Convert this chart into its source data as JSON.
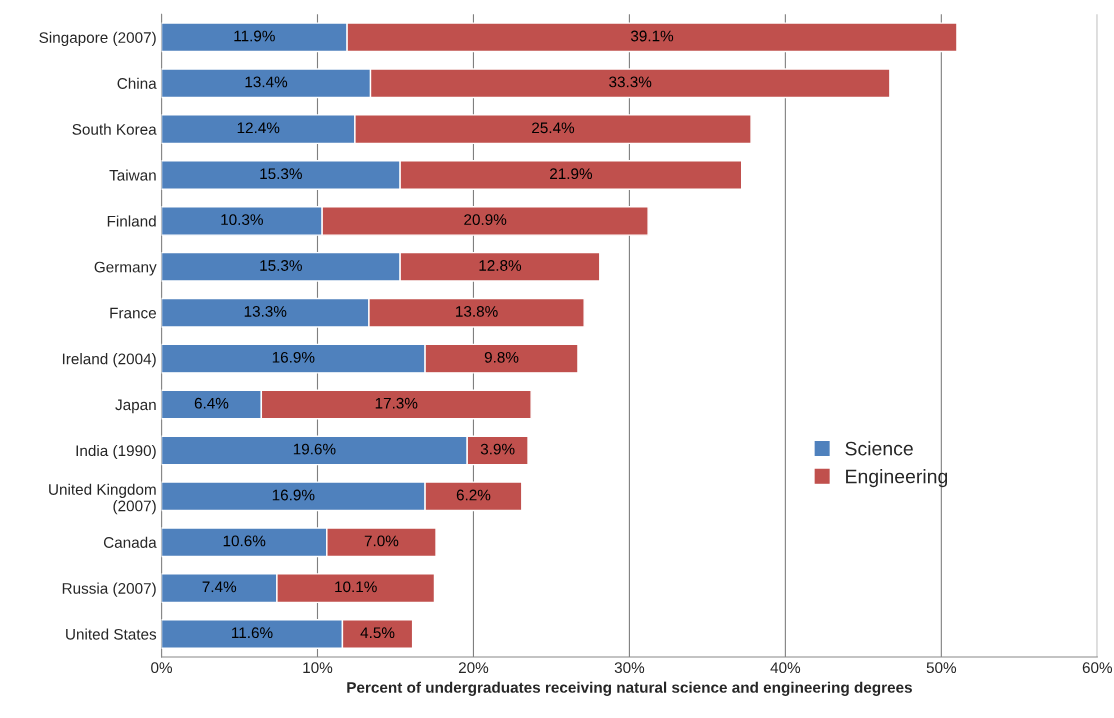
{
  "chart_data": {
    "type": "bar",
    "orientation": "horizontal",
    "stacked": true,
    "xlabel": "Percent of undergraduates receiving natural science and engineering degrees",
    "categories": [
      "Singapore (2007)",
      "China",
      "South Korea",
      "Taiwan",
      "Finland",
      "Germany",
      "France",
      "Ireland (2004)",
      "Japan",
      "India (1990)",
      "United Kingdom\n(2007)",
      "Canada",
      "Russia (2007)",
      "United States"
    ],
    "series": [
      {
        "name": "Science",
        "color": "#4f81bd",
        "values": [
          11.9,
          13.4,
          12.4,
          15.3,
          10.3,
          15.3,
          13.3,
          16.9,
          6.4,
          19.6,
          16.9,
          10.6,
          7.4,
          11.6
        ],
        "value_labels": [
          "11.9%",
          "13.4%",
          "12.4%",
          "15.3%",
          "10.3%",
          "15.3%",
          "13.3%",
          "16.9%",
          "6.4%",
          "19.6%",
          "16.9%",
          "10.6%",
          "7.4%",
          "11.6%"
        ]
      },
      {
        "name": "Engineering",
        "color": "#c0504d",
        "values": [
          39.1,
          33.3,
          25.4,
          21.9,
          20.9,
          12.8,
          13.8,
          9.8,
          17.3,
          3.9,
          6.2,
          7.0,
          10.1,
          4.5
        ],
        "value_labels": [
          "39.1%",
          "33.3%",
          "25.4%",
          "21.9%",
          "20.9%",
          "12.8%",
          "13.8%",
          "9.8%",
          "17.3%",
          "3.9%",
          "6.2%",
          "7.0%",
          "10.1%",
          "4.5%"
        ]
      }
    ],
    "xlim": [
      0,
      60
    ],
    "xticks": [
      {
        "value": 0,
        "label": "0%"
      },
      {
        "value": 10,
        "label": "10%"
      },
      {
        "value": 20,
        "label": "20%"
      },
      {
        "value": 30,
        "label": "30%"
      },
      {
        "value": 40,
        "label": "40%"
      },
      {
        "value": 50,
        "label": "50%"
      },
      {
        "value": 60,
        "label": "60%"
      }
    ],
    "grid": "x",
    "legend": "right"
  }
}
